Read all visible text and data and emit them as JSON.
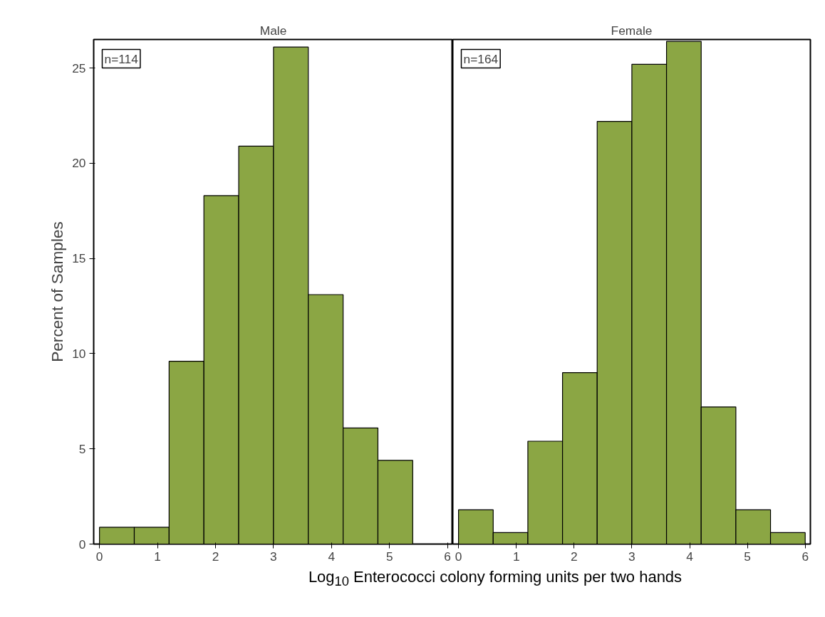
{
  "chart_data": [
    {
      "type": "histogram",
      "title": "Male",
      "xlabel": "Log$_{10}$ Enterococci colony forming units per two hands",
      "ylabel": "Percent of Samples",
      "bins": [
        0,
        0.6,
        1.2,
        1.8,
        2.4,
        3.0,
        3.6,
        4.2,
        4.8,
        5.4
      ],
      "values": [
        0.88,
        0.88,
        9.6,
        18.3,
        20.9,
        26.1,
        13.1,
        6.1,
        4.4
      ],
      "color": "#8ba644",
      "xlim": [
        -0.1,
        6.09
      ],
      "xticks": [
        0,
        1,
        2,
        3,
        4,
        5,
        6
      ],
      "ylim": [
        0,
        26.5
      ],
      "yticks": [
        0,
        5,
        10,
        15,
        20,
        25
      ],
      "annotations": [
        "n=114"
      ],
      "grid": false
    },
    {
      "type": "histogram",
      "title": "Female",
      "bins": [
        0,
        0.6,
        1.2,
        1.8,
        2.4,
        3.0,
        3.6,
        4.2,
        4.8,
        5.4,
        6.0
      ],
      "values": [
        1.8,
        0.6,
        5.4,
        9.0,
        22.2,
        25.2,
        26.4,
        7.2,
        1.8,
        0.6
      ],
      "color": "#8ba644",
      "xlim": [
        -0.1,
        6.09
      ],
      "xticks": [
        0,
        1,
        2,
        3,
        4,
        5,
        6
      ],
      "ylim": [
        0,
        26.5
      ],
      "yticks": [
        0,
        5,
        10,
        15,
        20,
        25
      ],
      "annotations": [
        "n=164"
      ],
      "grid": false,
      "tick_labels": "x"
    }
  ]
}
